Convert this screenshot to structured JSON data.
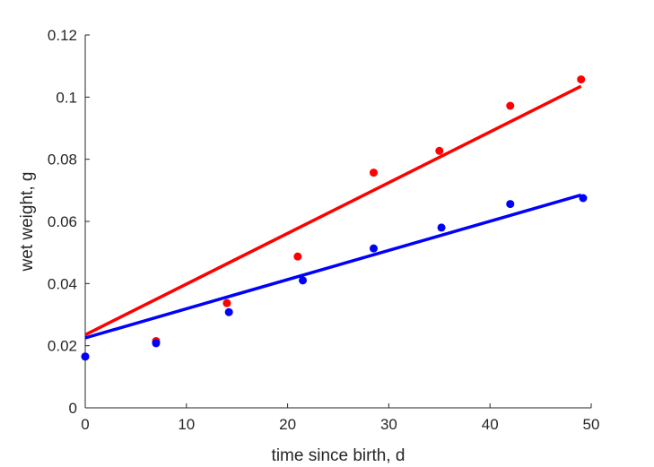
{
  "chart_data": {
    "type": "scatter",
    "title": "",
    "xlabel": "time since birth, d",
    "ylabel": "wet weight, g",
    "xlim": [
      0,
      50
    ],
    "ylim": [
      0,
      0.12
    ],
    "xticks": [
      "0",
      "10",
      "20",
      "30",
      "40",
      "50"
    ],
    "yticks": [
      "0",
      "0.02",
      "0.04",
      "0.06",
      "0.08",
      "0.1",
      "0.12"
    ],
    "grid": false,
    "legend": "none",
    "series": [
      {
        "color": "#ff0000",
        "points": [
          {
            "x": 0,
            "y": 0.0165
          },
          {
            "x": 7,
            "y": 0.0215
          },
          {
            "x": 14,
            "y": 0.0337
          },
          {
            "x": 21,
            "y": 0.0487
          },
          {
            "x": 28.5,
            "y": 0.0757
          },
          {
            "x": 35,
            "y": 0.0827
          },
          {
            "x": 42,
            "y": 0.0972
          },
          {
            "x": 49,
            "y": 0.1057
          }
        ],
        "fit": [
          {
            "x": 0,
            "y": 0.0235
          },
          {
            "x": 49,
            "y": 0.1035
          }
        ]
      },
      {
        "color": "#0000ff",
        "points": [
          {
            "x": 0,
            "y": 0.0165
          },
          {
            "x": 7,
            "y": 0.0208
          },
          {
            "x": 14.2,
            "y": 0.0308
          },
          {
            "x": 21.5,
            "y": 0.041
          },
          {
            "x": 28.5,
            "y": 0.0513
          },
          {
            "x": 35.2,
            "y": 0.058
          },
          {
            "x": 42,
            "y": 0.0656
          },
          {
            "x": 49.2,
            "y": 0.0675
          }
        ],
        "fit": [
          {
            "x": 0,
            "y": 0.0225
          },
          {
            "x": 49,
            "y": 0.0685
          }
        ]
      }
    ]
  }
}
